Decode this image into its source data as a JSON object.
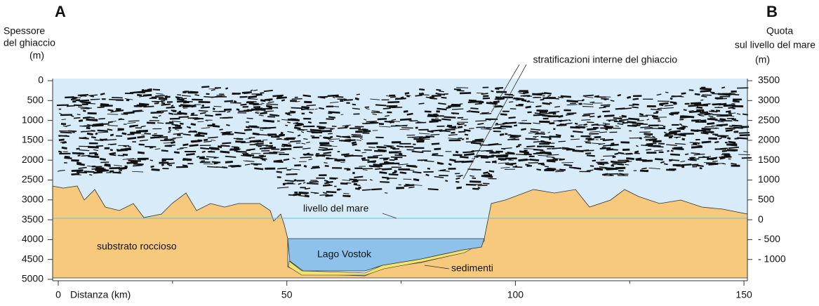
{
  "labels": {
    "left_letter": "A",
    "right_letter": "B",
    "left_axis_title": [
      "Spessore",
      "del ghiaccio",
      "(m)"
    ],
    "right_axis_title": [
      "Quota",
      "sul livello del mare",
      "(m)"
    ],
    "x_axis_title": "Distanza (km)"
  },
  "left_ticks": [
    0,
    500,
    1000,
    1500,
    2000,
    2500,
    3000,
    3500,
    4000,
    4500,
    5000
  ],
  "right_ticks": [
    3500,
    3000,
    2500,
    2000,
    1500,
    1000,
    500,
    0,
    "- 500",
    "- 1000"
  ],
  "x_ticks": [
    0,
    50,
    100,
    150
  ],
  "annotations": {
    "layers": "stratificazioni interne del ghiaccio",
    "sea_level": "livello del mare",
    "bedrock": "substrato roccioso",
    "lake": "Lago Vostok",
    "sediments": "sedimenti"
  }
}
